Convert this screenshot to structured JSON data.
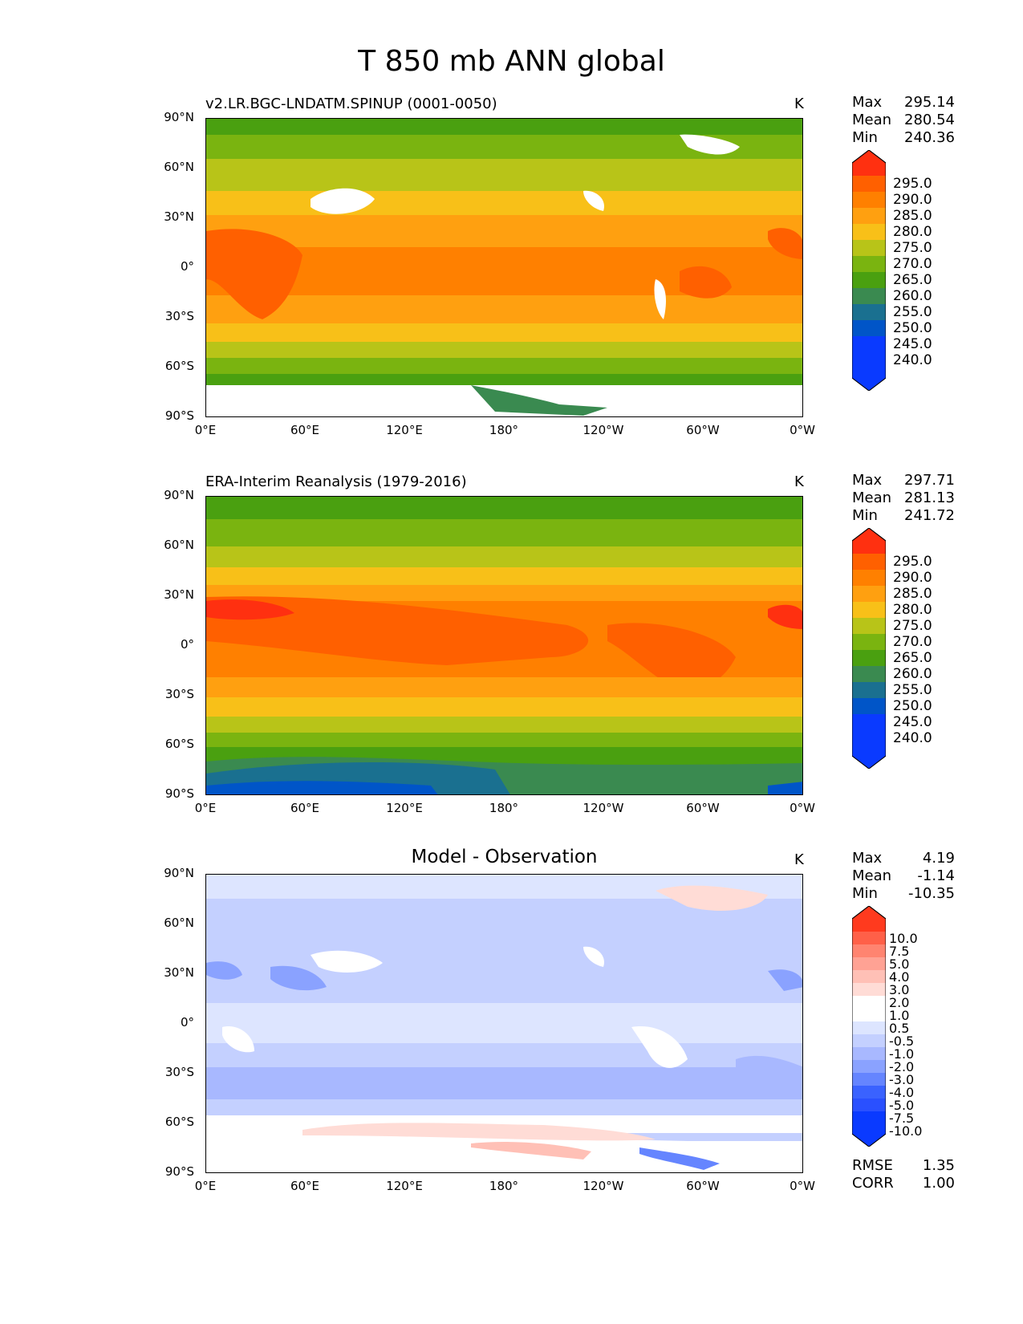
{
  "figure": {
    "title": "T 850 mb ANN global"
  },
  "axes": {
    "yticks": [
      "90°N",
      "60°N",
      "30°N",
      "0°",
      "30°S",
      "60°S",
      "90°S"
    ],
    "xticks": [
      "0°E",
      "60°E",
      "120°E",
      "180°",
      "120°W",
      "60°W",
      "0°W"
    ]
  },
  "panels": [
    {
      "title": "v2.LR.BGC-LNDATM.SPINUP (0001-0050)",
      "unit": "K",
      "stats": {
        "max_label": "Max",
        "max": "295.14",
        "mean_label": "Mean",
        "mean": "280.54",
        "min_label": "Min",
        "min": "240.36"
      },
      "colorbar": [
        "295.0",
        "290.0",
        "285.0",
        "280.0",
        "275.0",
        "270.0",
        "265.0",
        "260.0",
        "255.0",
        "250.0",
        "245.0",
        "240.0"
      ]
    },
    {
      "title": "ERA-Interim Reanalysis (1979-2016)",
      "unit": "K",
      "stats": {
        "max_label": "Max",
        "max": "297.71",
        "mean_label": "Mean",
        "mean": "281.13",
        "min_label": "Min",
        "min": "241.72"
      },
      "colorbar": [
        "295.0",
        "290.0",
        "285.0",
        "280.0",
        "275.0",
        "270.0",
        "265.0",
        "260.0",
        "255.0",
        "250.0",
        "245.0",
        "240.0"
      ]
    },
    {
      "title": "Model - Observation",
      "unit": "K",
      "stats": {
        "max_label": "Max",
        "max": "4.19",
        "mean_label": "Mean",
        "mean": "-1.14",
        "min_label": "Min",
        "min": "-10.35"
      },
      "colorbar": [
        "10.0",
        "7.5",
        "5.0",
        "4.0",
        "3.0",
        "2.0",
        "1.0",
        "0.5",
        "-0.5",
        "-1.0",
        "-2.0",
        "-3.0",
        "-4.0",
        "-5.0",
        "-7.5",
        "-10.0"
      ]
    }
  ],
  "metrics": {
    "rmse_label": "RMSE",
    "rmse": "1.35",
    "corr_label": "CORR",
    "corr": "1.00"
  },
  "colors": {
    "temperature_scale": [
      "#0a3aff",
      "#0055c8",
      "#1a7090",
      "#3a8a50",
      "#4aa010",
      "#7ab410",
      "#b8c418",
      "#f8c018",
      "#ffa010",
      "#ff8000",
      "#ff6000",
      "#ff3010"
    ],
    "difference_scale": [
      "#0a3aff",
      "#3a62ff",
      "#6585ff",
      "#8aa2ff",
      "#a8b8ff",
      "#c4d0ff",
      "#dde5ff",
      "#ffffff",
      "#ffffff",
      "#ffdcd6",
      "#ffc0b6",
      "#ffa294",
      "#ff8470",
      "#ff6048",
      "#ff3a1e",
      "#ff1a00"
    ]
  }
}
